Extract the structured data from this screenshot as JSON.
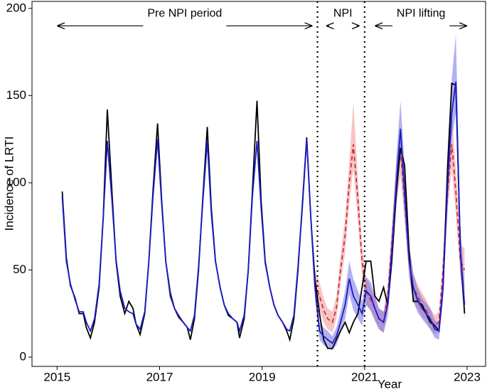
{
  "chart_data": {
    "type": "line",
    "xlabel": "Year",
    "ylabel": "Incidence of LRTI",
    "xlim": [
      2014.51,
      2023.36
    ],
    "ylim": [
      -5.3,
      204
    ],
    "xticks": [
      2015,
      2017,
      2019,
      2021,
      2023
    ],
    "yticks": [
      0,
      50,
      100,
      150,
      200
    ],
    "vlines": [
      2020.08,
      2021
    ],
    "annotations": [
      {
        "text": "Pre NPI period",
        "x": [
          2015,
          2019.98
        ],
        "y": 190
      },
      {
        "text": "NPI",
        "x": [
          2020.25,
          2020.9
        ],
        "y": 190
      },
      {
        "text": "NPI lifting",
        "x": [
          2021.2,
          2023
        ],
        "y": 190
      }
    ],
    "x": [
      2015.1,
      2015.18,
      2015.26,
      2015.35,
      2015.43,
      2015.51,
      2015.57,
      2015.65,
      2015.73,
      2015.82,
      2015.9,
      2015.98,
      2016.07,
      2016.15,
      2016.23,
      2016.32,
      2016.4,
      2016.48,
      2016.54,
      2016.62,
      2016.71,
      2016.79,
      2016.87,
      2016.96,
      2017.04,
      2017.12,
      2017.21,
      2017.29,
      2017.37,
      2017.46,
      2017.54,
      2017.6,
      2017.68,
      2017.76,
      2017.84,
      2017.93,
      2018.01,
      2018.09,
      2018.18,
      2018.26,
      2018.34,
      2018.43,
      2018.51,
      2018.56,
      2018.65,
      2018.73,
      2018.81,
      2018.9,
      2018.98,
      2019.06,
      2019.15,
      2019.23,
      2019.31,
      2019.4,
      2019.48,
      2019.54,
      2019.62,
      2019.7,
      2019.79,
      2019.87,
      2019.95,
      2020.03,
      2020.12,
      2020.2,
      2020.28,
      2020.37,
      2020.45,
      2020.53,
      2020.62,
      2020.7,
      2020.78,
      2020.87,
      2020.95,
      2021.03,
      2021.12,
      2021.2,
      2021.28,
      2021.37,
      2021.45,
      2021.53,
      2021.62,
      2021.7,
      2021.78,
      2021.87,
      2021.95,
      2022.03,
      2022.12,
      2022.2,
      2022.28,
      2022.37,
      2022.45,
      2022.53,
      2022.62,
      2022.7,
      2022.78,
      2022.87,
      2022.95
    ],
    "bands": [
      {
        "color": "#f08a8a",
        "lower": [
          null,
          null,
          null,
          null,
          null,
          null,
          null,
          null,
          null,
          null,
          null,
          null,
          null,
          null,
          null,
          null,
          null,
          null,
          null,
          null,
          null,
          null,
          null,
          null,
          null,
          null,
          null,
          null,
          null,
          null,
          null,
          null,
          null,
          null,
          null,
          null,
          null,
          null,
          null,
          null,
          null,
          null,
          null,
          null,
          null,
          null,
          null,
          null,
          null,
          null,
          null,
          null,
          null,
          null,
          null,
          null,
          null,
          null,
          null,
          null,
          null,
          35,
          27,
          20,
          16,
          14,
          22,
          42,
          60,
          88,
          108,
          78,
          46,
          30,
          26,
          21,
          16,
          14,
          28,
          55,
          88,
          104,
          78,
          46,
          32,
          28,
          23,
          21,
          16,
          13,
          15,
          42,
          84,
          108,
          82,
          45,
          40
        ],
        "upper": [
          null,
          null,
          null,
          null,
          null,
          null,
          null,
          null,
          null,
          null,
          null,
          null,
          null,
          null,
          null,
          null,
          null,
          null,
          null,
          null,
          null,
          null,
          null,
          null,
          null,
          null,
          null,
          null,
          null,
          null,
          null,
          null,
          null,
          null,
          null,
          null,
          null,
          null,
          null,
          null,
          null,
          null,
          null,
          null,
          null,
          null,
          null,
          null,
          null,
          null,
          null,
          null,
          null,
          null,
          null,
          null,
          null,
          null,
          null,
          null,
          null,
          50,
          43,
          34,
          28,
          26,
          35,
          58,
          80,
          112,
          146,
          102,
          64,
          46,
          40,
          35,
          28,
          26,
          42,
          75,
          112,
          132,
          102,
          64,
          48,
          42,
          37,
          33,
          28,
          24,
          26,
          58,
          110,
          140,
          108,
          65,
          62
        ]
      },
      {
        "color": "#6464e6",
        "lower": [
          null,
          null,
          null,
          null,
          null,
          null,
          null,
          null,
          null,
          null,
          null,
          null,
          null,
          null,
          null,
          null,
          null,
          null,
          null,
          null,
          null,
          null,
          null,
          null,
          null,
          null,
          null,
          null,
          null,
          null,
          null,
          null,
          null,
          null,
          null,
          null,
          null,
          null,
          null,
          null,
          null,
          null,
          null,
          null,
          null,
          null,
          null,
          null,
          null,
          null,
          null,
          null,
          null,
          null,
          null,
          null,
          null,
          null,
          null,
          null,
          null,
          34,
          10,
          7,
          5,
          4,
          7,
          14,
          22,
          36,
          27,
          22,
          18,
          30,
          27,
          21,
          16,
          14,
          23,
          50,
          88,
          116,
          82,
          46,
          32,
          26,
          22,
          19,
          16,
          11,
          10,
          32,
          88,
          125,
          140,
          48,
          22
        ],
        "upper": [
          null,
          null,
          null,
          null,
          null,
          null,
          null,
          null,
          null,
          null,
          null,
          null,
          null,
          null,
          null,
          null,
          null,
          null,
          null,
          null,
          null,
          null,
          null,
          null,
          null,
          null,
          null,
          null,
          null,
          null,
          null,
          null,
          null,
          null,
          null,
          null,
          null,
          null,
          null,
          null,
          null,
          null,
          null,
          null,
          null,
          null,
          null,
          null,
          null,
          null,
          null,
          null,
          null,
          null,
          null,
          null,
          null,
          null,
          null,
          null,
          null,
          46,
          20,
          17,
          15,
          12,
          17,
          26,
          38,
          55,
          45,
          38,
          32,
          46,
          43,
          35,
          28,
          26,
          37,
          70,
          115,
          147,
          110,
          64,
          48,
          40,
          34,
          31,
          28,
          21,
          20,
          48,
          115,
          160,
          185,
          75,
          40
        ]
      }
    ],
    "series": [
      {
        "color": "#c8323c",
        "dashed": true,
        "values": [
          null,
          null,
          null,
          null,
          null,
          null,
          null,
          null,
          null,
          null,
          null,
          null,
          null,
          null,
          null,
          null,
          null,
          null,
          null,
          null,
          null,
          null,
          null,
          null,
          null,
          null,
          null,
          null,
          null,
          null,
          null,
          null,
          null,
          null,
          null,
          null,
          null,
          null,
          null,
          null,
          null,
          null,
          null,
          null,
          null,
          null,
          null,
          null,
          null,
          null,
          null,
          null,
          null,
          null,
          null,
          null,
          null,
          null,
          null,
          null,
          null,
          42,
          35,
          27,
          22,
          20,
          28,
          50,
          70,
          100,
          122,
          90,
          55,
          38,
          33,
          28,
          22,
          20,
          35,
          65,
          100,
          118,
          90,
          55,
          40,
          35,
          30,
          27,
          22,
          18,
          20,
          50,
          95,
          122,
          95,
          55,
          50
        ]
      },
      {
        "color": "#000000",
        "dashed": false,
        "values": [
          95,
          57,
          41,
          34,
          25,
          25,
          17,
          11,
          20,
          40,
          80,
          142,
          95,
          55,
          35,
          25,
          32,
          28,
          19,
          13,
          25,
          55,
          95,
          134,
          90,
          55,
          35,
          28,
          23,
          20,
          17,
          10,
          22,
          50,
          90,
          132,
          85,
          55,
          40,
          30,
          24,
          22,
          20,
          11,
          22,
          50,
          95,
          147,
          90,
          55,
          40,
          30,
          24,
          20,
          15,
          10,
          22,
          50,
          90,
          126,
          80,
          45,
          25,
          10,
          5,
          5,
          10,
          15,
          20,
          14,
          20,
          25,
          40,
          55,
          55,
          35,
          32,
          40,
          30,
          55,
          95,
          120,
          110,
          60,
          32,
          32,
          30,
          25,
          20,
          18,
          15,
          40,
          110,
          157,
          156,
          60,
          25
        ]
      },
      {
        "color": "#1c1cc8",
        "dashed": false,
        "values": [
          92,
          55,
          42,
          33,
          26,
          26,
          20,
          15,
          22,
          42,
          80,
          124,
          90,
          56,
          38,
          28,
          26,
          25,
          19,
          16,
          26,
          55,
          92,
          125,
          88,
          55,
          37,
          28,
          24,
          20,
          17,
          15,
          24,
          52,
          88,
          124,
          82,
          55,
          40,
          30,
          25,
          22,
          20,
          15,
          24,
          50,
          92,
          124,
          86,
          54,
          40,
          30,
          24,
          20,
          16,
          15,
          24,
          52,
          88,
          125,
          80,
          40,
          15,
          12,
          10,
          8,
          12,
          20,
          30,
          45,
          35,
          30,
          25,
          38,
          35,
          28,
          22,
          20,
          30,
          60,
          100,
          131,
          95,
          55,
          40,
          33,
          28,
          25,
          22,
          16,
          15,
          40,
          100,
          140,
          158,
          60,
          30
        ]
      }
    ]
  }
}
